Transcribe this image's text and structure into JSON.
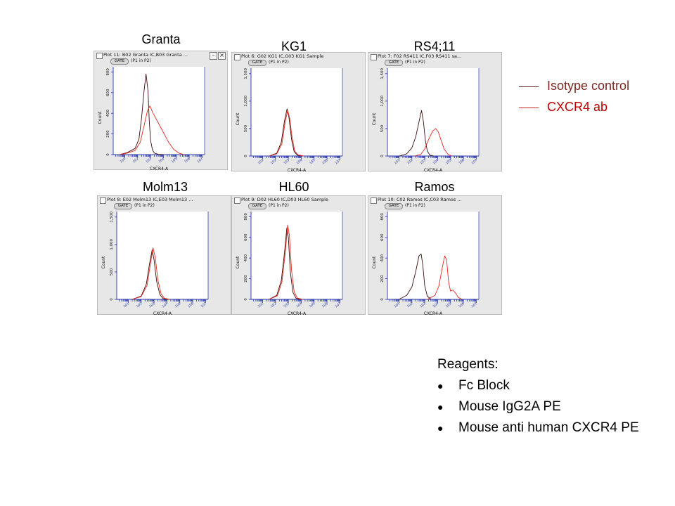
{
  "chart_data": [
    {
      "type": "line",
      "title": "Granta",
      "plot_title": "Plot 11: B02 Granta IC,B03 Granta ...",
      "gate_label": "GATE",
      "gate_text": "(P1 in P2)",
      "xlabel": "CXCR4-A",
      "ylabel": "Count",
      "x_scale": "log",
      "xlim": [
        0.1,
        7.2
      ],
      "ylim": [
        0,
        850
      ],
      "yticks": [
        0,
        200,
        400,
        600,
        800
      ],
      "xticks": [
        "10^1",
        "10^2",
        "10^3",
        "10^4",
        "10^5",
        "10^6",
        "10^7"
      ],
      "series": [
        {
          "name": "Isotype control",
          "x": [
            0.6,
            1.2,
            1.8,
            2.1,
            2.3,
            2.5,
            2.65,
            2.8,
            2.9,
            3.0,
            3.15,
            3.3,
            3.6,
            4.0
          ],
          "values": [
            0,
            20,
            60,
            150,
            350,
            620,
            780,
            620,
            330,
            140,
            45,
            15,
            3,
            0
          ]
        },
        {
          "name": "CXCR4 ab",
          "x": [
            0.6,
            1.2,
            1.8,
            2.2,
            2.5,
            2.75,
            2.95,
            3.2,
            3.5,
            3.8,
            4.1,
            4.4,
            4.8,
            5.2,
            5.6
          ],
          "values": [
            0,
            15,
            40,
            120,
            280,
            420,
            470,
            400,
            330,
            260,
            190,
            120,
            50,
            15,
            0
          ]
        }
      ]
    },
    {
      "type": "line",
      "title": "KG1",
      "plot_title": "Plot 6: G02 KG1 IC,G03 KG1 Sample",
      "gate_label": "GATE",
      "gate_text": "(P1 in P2)",
      "xlabel": "CXCR4-A",
      "ylabel": "Count",
      "x_scale": "log",
      "xlim": [
        0.1,
        7.2
      ],
      "ylim": [
        0,
        1600
      ],
      "yticks": [
        0,
        500,
        1000,
        1500
      ],
      "xticks": [
        "10^1",
        "10^2",
        "10^3",
        "10^4",
        "10^5",
        "10^6",
        "10^7"
      ],
      "series": [
        {
          "name": "Isotype control",
          "x": [
            1.5,
            2.1,
            2.45,
            2.7,
            2.9,
            3.05,
            3.25,
            3.45,
            3.7,
            4.1
          ],
          "values": [
            0,
            50,
            250,
            640,
            860,
            700,
            300,
            80,
            15,
            0
          ]
        },
        {
          "name": "CXCR4 ab",
          "x": [
            1.5,
            2.1,
            2.5,
            2.75,
            2.95,
            3.1,
            3.3,
            3.5,
            3.75,
            4.2
          ],
          "values": [
            0,
            40,
            220,
            620,
            830,
            690,
            320,
            90,
            20,
            0
          ]
        }
      ]
    },
    {
      "type": "line",
      "title": "RS4;11",
      "plot_title": "Plot 7: F02 RS411 IC,F03 RS411 sa...",
      "gate_label": "GATE",
      "gate_text": "(P1 in P2)",
      "xlabel": "CXCR4-A",
      "ylabel": "Count",
      "x_scale": "log",
      "xlim": [
        0.1,
        7.2
      ],
      "ylim": [
        0,
        1600
      ],
      "yticks": [
        0,
        500,
        1000,
        1500
      ],
      "xticks": [
        "10^1",
        "10^2",
        "10^3",
        "10^4",
        "10^5",
        "10^6",
        "10^7"
      ],
      "series": [
        {
          "name": "Isotype control",
          "x": [
            1.0,
            1.6,
            2.0,
            2.3,
            2.55,
            2.75,
            2.9,
            3.05,
            3.2,
            3.4,
            3.7
          ],
          "values": [
            0,
            40,
            150,
            350,
            620,
            830,
            620,
            280,
            90,
            15,
            0
          ]
        },
        {
          "name": "CXCR4 ab",
          "x": [
            2.2,
            2.7,
            3.0,
            3.3,
            3.6,
            3.85,
            4.05,
            4.25,
            4.5,
            4.8,
            5.1
          ],
          "values": [
            0,
            30,
            130,
            300,
            450,
            500,
            440,
            300,
            130,
            30,
            0
          ]
        }
      ]
    },
    {
      "type": "line",
      "title": "Molm13",
      "plot_title": "Plot 8: E02 Molm13 IC,E03 Molm13 ...",
      "gate_label": "GATE",
      "gate_text": "(P1 in P2)",
      "xlabel": "CXCR4-A",
      "ylabel": "Count",
      "x_scale": "log",
      "xlim": [
        0.1,
        7.2
      ],
      "ylim": [
        0,
        1600
      ],
      "yticks": [
        0,
        500,
        1000,
        1500
      ],
      "xticks": [
        "10^1",
        "10^2",
        "10^3",
        "10^4",
        "10^5",
        "10^6",
        "10^7"
      ],
      "series": [
        {
          "name": "Isotype control",
          "x": [
            1.3,
            2.0,
            2.4,
            2.65,
            2.85,
            3.0,
            3.2,
            3.45,
            3.7,
            4.1
          ],
          "values": [
            0,
            60,
            280,
            650,
            900,
            720,
            330,
            90,
            15,
            0
          ]
        },
        {
          "name": "CXCR4 ab",
          "x": [
            1.3,
            2.0,
            2.45,
            2.7,
            2.92,
            3.1,
            3.3,
            3.55,
            3.8,
            4.2
          ],
          "values": [
            0,
            50,
            250,
            620,
            940,
            750,
            350,
            100,
            20,
            0
          ]
        }
      ]
    },
    {
      "type": "line",
      "title": "HL60",
      "plot_title": "Plot 9: D02 HL60 IC,D03 HL60 Sample",
      "gate_label": "GATE",
      "gate_text": "(P1 in P2)",
      "xlabel": "CXCR4-A",
      "ylabel": "Count",
      "x_scale": "log",
      "xlim": [
        0.1,
        7.2
      ],
      "ylim": [
        0,
        850
      ],
      "yticks": [
        0,
        200,
        400,
        600,
        800
      ],
      "xticks": [
        "10^1",
        "10^2",
        "10^3",
        "10^4",
        "10^5",
        "10^6",
        "10^7"
      ],
      "series": [
        {
          "name": "Isotype control",
          "x": [
            1.5,
            2.1,
            2.45,
            2.7,
            2.88,
            3.0,
            3.15,
            3.35,
            3.6,
            4.0
          ],
          "values": [
            0,
            40,
            180,
            450,
            690,
            600,
            270,
            70,
            10,
            0
          ]
        },
        {
          "name": "CXCR4 ab",
          "x": [
            1.5,
            2.15,
            2.5,
            2.75,
            2.95,
            3.08,
            3.25,
            3.45,
            3.7,
            4.1
          ],
          "values": [
            0,
            35,
            170,
            440,
            720,
            620,
            280,
            75,
            12,
            0
          ]
        }
      ]
    },
    {
      "type": "line",
      "title": "Ramos",
      "plot_title": "Plot 10: C02 Ramos IC,C03 Ramos ...",
      "gate_label": "GATE",
      "gate_text": "(P1 in P2)",
      "xlabel": "CXCR4-A",
      "ylabel": "Count",
      "x_scale": "log",
      "xlim": [
        0.1,
        7.2
      ],
      "ylim": [
        0,
        850
      ],
      "yticks": [
        0,
        200,
        400,
        600,
        800
      ],
      "xticks": [
        "10^1",
        "10^2",
        "10^3",
        "10^4",
        "10^5",
        "10^6",
        "10^7"
      ],
      "series": [
        {
          "name": "Isotype control",
          "x": [
            1.0,
            1.6,
            2.0,
            2.3,
            2.55,
            2.72,
            2.85,
            3.0,
            3.2,
            3.5
          ],
          "values": [
            0,
            40,
            120,
            270,
            420,
            440,
            330,
            130,
            30,
            0
          ]
        },
        {
          "name": "CXCR4 ab",
          "x": [
            3.2,
            3.8,
            4.1,
            4.35,
            4.55,
            4.7,
            4.85,
            5.0,
            5.2,
            5.4,
            5.6,
            5.9
          ],
          "values": [
            0,
            40,
            130,
            300,
            420,
            380,
            170,
            80,
            90,
            60,
            20,
            0
          ]
        }
      ]
    }
  ],
  "legend": {
    "items": [
      {
        "label": "Isotype control",
        "color": "#5a1f1f"
      },
      {
        "label": "CXCR4 ab",
        "color": "#cc1f1f"
      }
    ]
  },
  "reagents": {
    "heading": "Reagents:",
    "items": [
      "Fc Block",
      "Mouse IgG2A PE",
      "Mouse anti human CXCR4 PE"
    ]
  },
  "colors": {
    "isotype": "#3d0c0c",
    "cxcr4": "#e8251f",
    "axis": "#2233aa"
  }
}
